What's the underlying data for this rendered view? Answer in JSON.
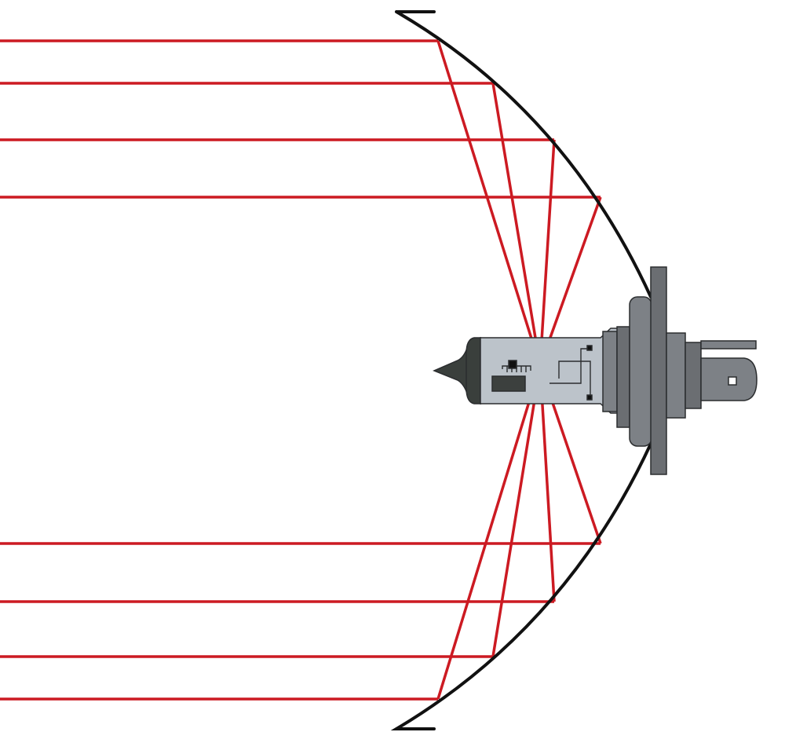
{
  "diagram": {
    "colors": {
      "background": "#ffffff",
      "ray": "#cc1a22",
      "reflector": "#111111",
      "bulb_glass": "#bcc3ca",
      "bulb_cap": "#3a3f3c",
      "base_dark": "#6b6e72",
      "base_mid": "#7d8186",
      "filament": "#3c403e"
    },
    "reflector_shape": "parabola",
    "rays_upper": 4,
    "rays_lower": 4
  }
}
